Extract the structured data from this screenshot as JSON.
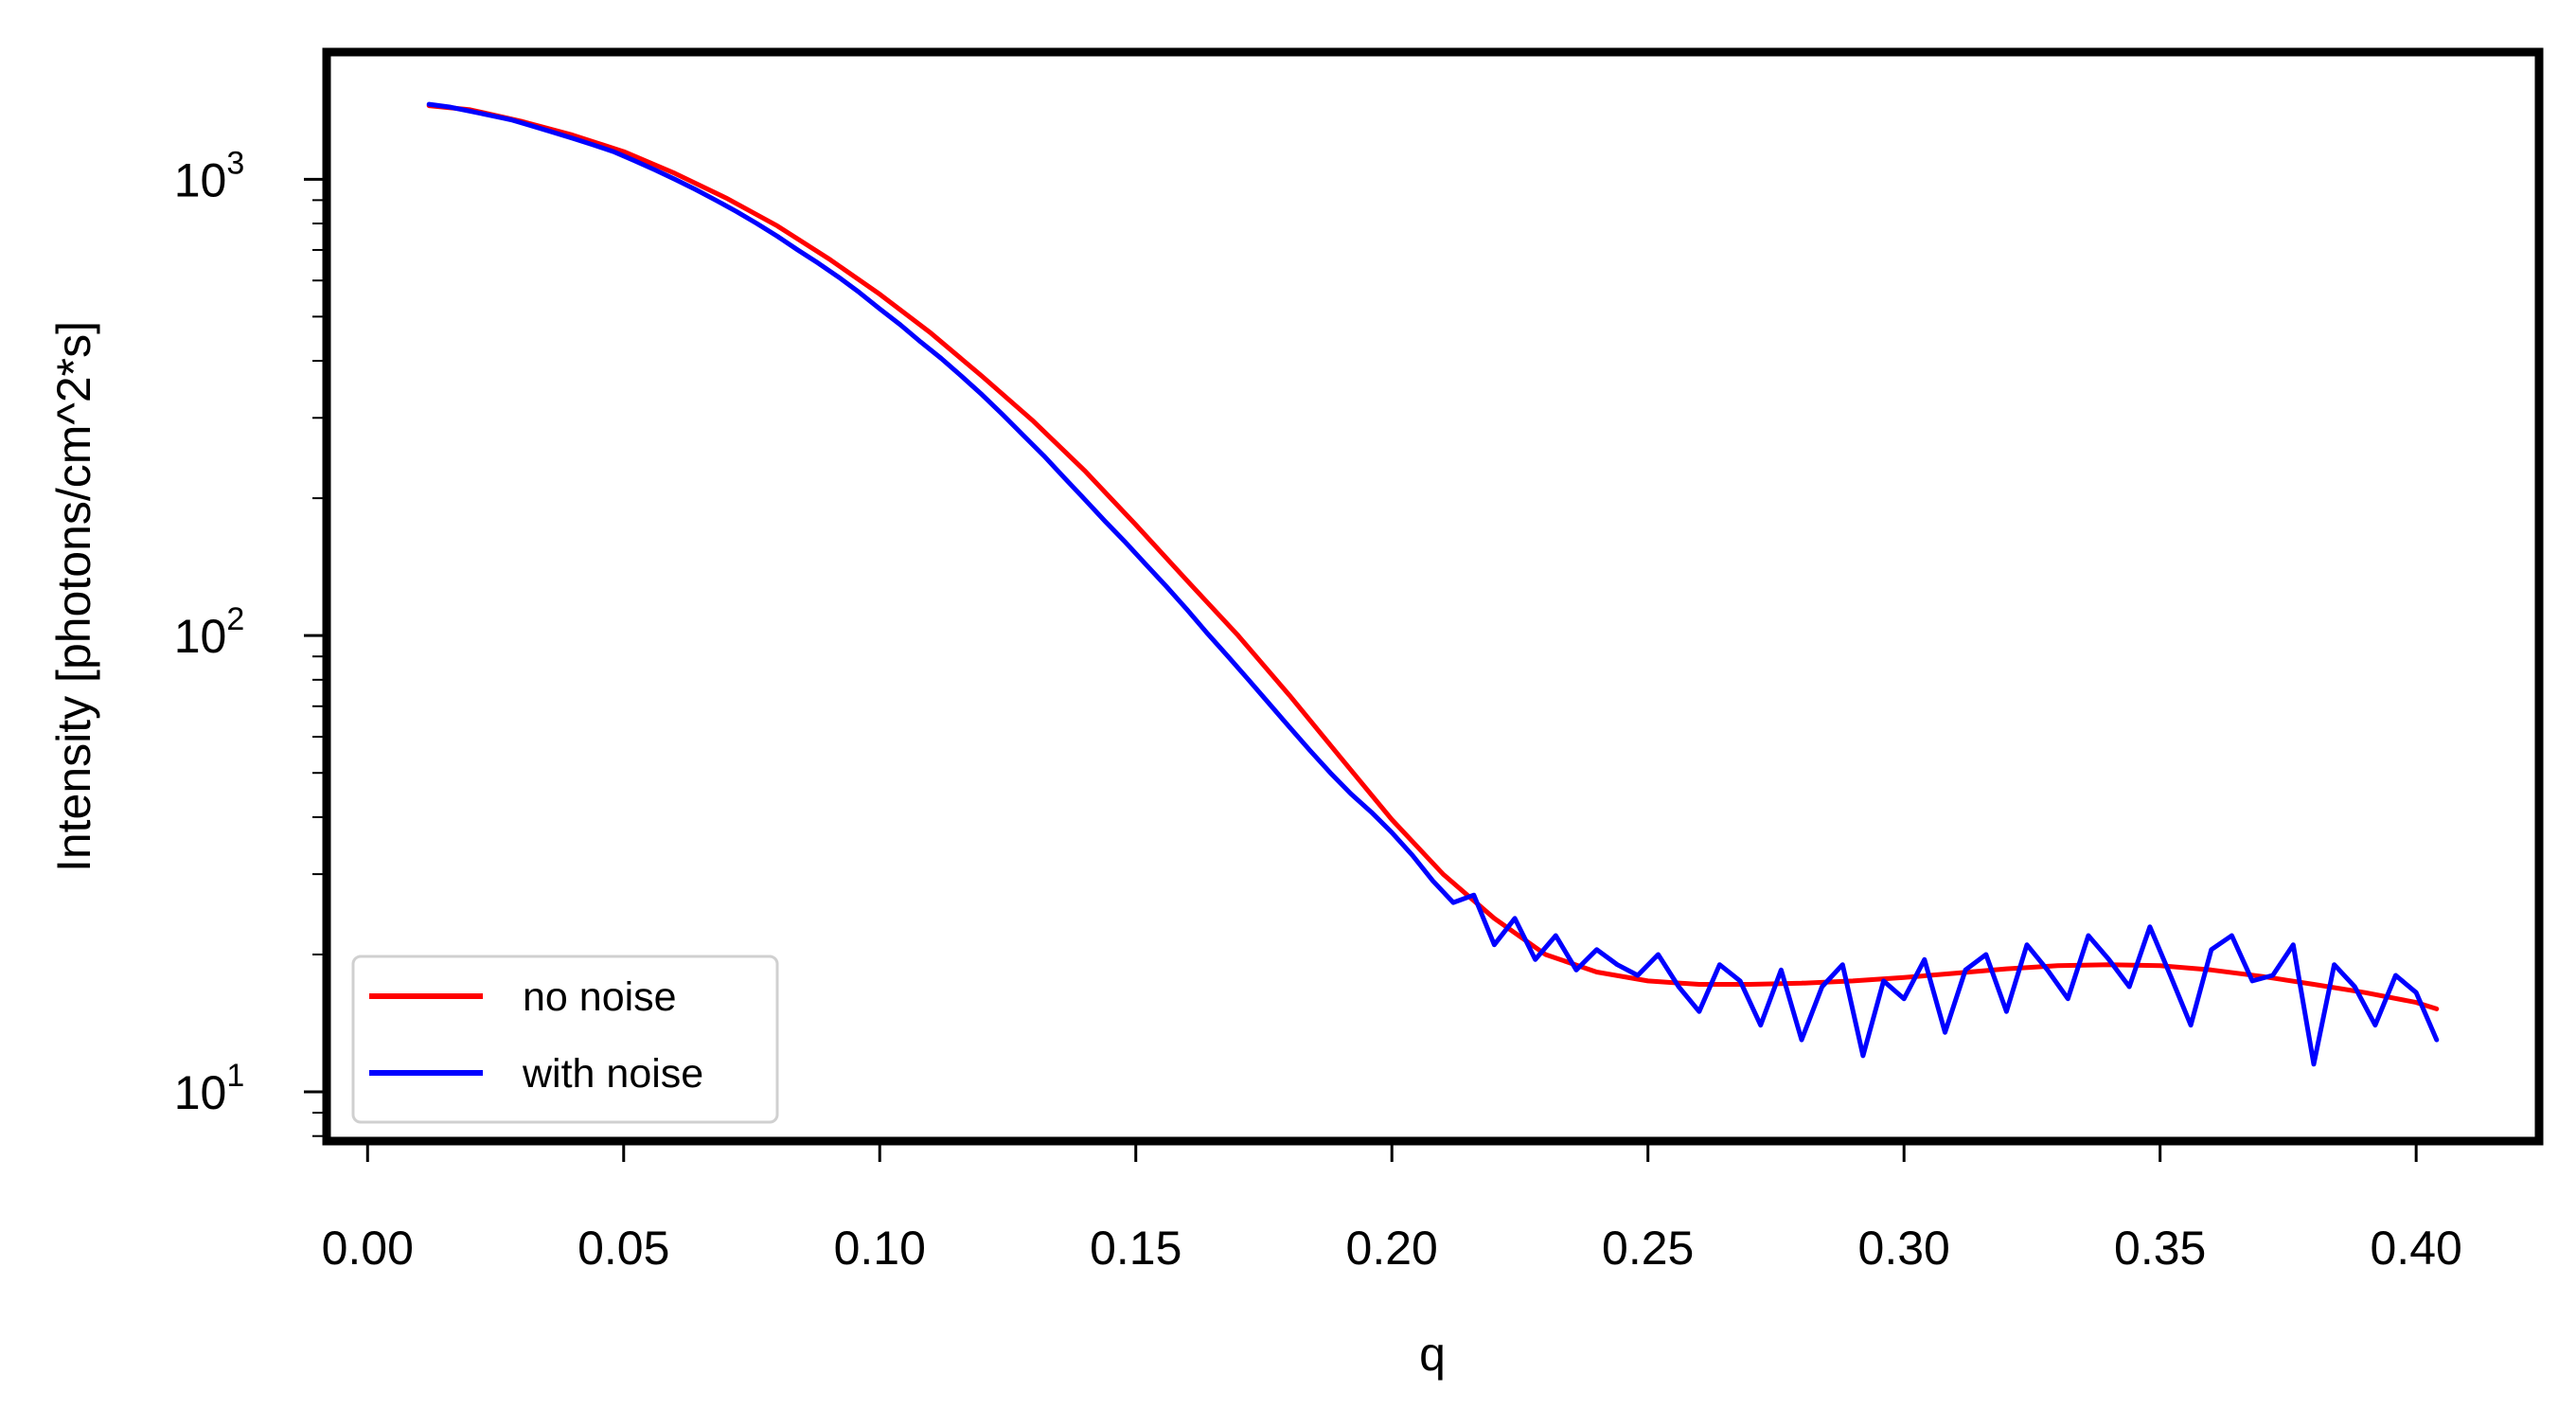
{
  "chart_data": {
    "type": "line",
    "title": "",
    "xlabel": "q",
    "ylabel": "Intensity [photons/cm^2*s]",
    "xlim": [
      -0.008,
      0.424
    ],
    "ylim": [
      7.8,
      1900
    ],
    "yscale": "log",
    "grid": false,
    "legend_position": "lower-left",
    "x_ticks": [
      "0.00",
      "0.05",
      "0.10",
      "0.15",
      "0.20",
      "0.25",
      "0.30",
      "0.35",
      "0.40"
    ],
    "y_ticks": [
      {
        "base": "10",
        "exp": "1",
        "value": 10
      },
      {
        "base": "10",
        "exp": "2",
        "value": 100
      },
      {
        "base": "10",
        "exp": "3",
        "value": 1000
      }
    ],
    "series": [
      {
        "name": "no noise",
        "color": "#ff0000",
        "x": [
          0.012,
          0.02,
          0.03,
          0.04,
          0.05,
          0.06,
          0.07,
          0.08,
          0.09,
          0.1,
          0.11,
          0.12,
          0.13,
          0.14,
          0.15,
          0.16,
          0.17,
          0.18,
          0.19,
          0.2,
          0.21,
          0.22,
          0.23,
          0.24,
          0.25,
          0.26,
          0.27,
          0.28,
          0.29,
          0.3,
          0.31,
          0.32,
          0.33,
          0.34,
          0.35,
          0.36,
          0.37,
          0.38,
          0.39,
          0.4,
          0.404
        ],
        "y": [
          1450,
          1420,
          1340,
          1250,
          1150,
          1030,
          910,
          790,
          670,
          560,
          460,
          370,
          295,
          230,
          175,
          132,
          100,
          74,
          54,
          39.5,
          30,
          24,
          20,
          18.3,
          17.5,
          17.2,
          17.2,
          17.3,
          17.5,
          17.8,
          18.2,
          18.6,
          18.9,
          19.0,
          18.9,
          18.5,
          17.9,
          17.2,
          16.5,
          15.7,
          15.2
        ]
      },
      {
        "name": "with noise",
        "color": "#0000ff",
        "x": [
          0.012,
          0.016,
          0.02,
          0.024,
          0.028,
          0.032,
          0.036,
          0.04,
          0.044,
          0.048,
          0.052,
          0.056,
          0.06,
          0.064,
          0.068,
          0.072,
          0.076,
          0.08,
          0.084,
          0.088,
          0.092,
          0.096,
          0.1,
          0.104,
          0.108,
          0.112,
          0.116,
          0.12,
          0.124,
          0.128,
          0.132,
          0.136,
          0.14,
          0.144,
          0.148,
          0.152,
          0.156,
          0.16,
          0.164,
          0.168,
          0.172,
          0.176,
          0.18,
          0.184,
          0.188,
          0.192,
          0.196,
          0.2,
          0.204,
          0.208,
          0.212,
          0.216,
          0.22,
          0.224,
          0.228,
          0.232,
          0.236,
          0.24,
          0.244,
          0.248,
          0.252,
          0.256,
          0.26,
          0.264,
          0.268,
          0.272,
          0.276,
          0.28,
          0.284,
          0.288,
          0.292,
          0.296,
          0.3,
          0.304,
          0.308,
          0.312,
          0.316,
          0.32,
          0.324,
          0.328,
          0.332,
          0.336,
          0.34,
          0.344,
          0.348,
          0.352,
          0.356,
          0.36,
          0.364,
          0.368,
          0.372,
          0.376,
          0.38,
          0.384,
          0.388,
          0.392,
          0.396,
          0.4,
          0.404
        ],
        "y": [
          1460,
          1440,
          1410,
          1380,
          1350,
          1310,
          1270,
          1230,
          1190,
          1150,
          1100,
          1050,
          1000,
          950,
          900,
          850,
          800,
          750,
          700,
          655,
          610,
          565,
          520,
          480,
          440,
          405,
          370,
          337,
          305,
          275,
          248,
          222,
          199,
          178,
          160,
          143,
          128,
          114,
          101,
          90,
          80,
          71,
          63,
          56,
          50,
          45,
          41,
          37,
          33,
          29,
          26,
          27,
          21,
          24,
          19.5,
          22,
          18.5,
          20.5,
          19,
          18,
          20,
          17,
          15,
          19,
          17.5,
          14,
          18.5,
          13,
          17,
          19,
          12,
          17.5,
          16,
          19.5,
          13.5,
          18.5,
          20,
          15,
          21,
          18.5,
          16,
          22,
          19.5,
          17,
          23,
          18,
          14,
          20.5,
          22,
          17.5,
          18,
          21,
          11.5,
          19,
          17,
          14,
          18,
          16.5,
          13
        ]
      }
    ]
  }
}
